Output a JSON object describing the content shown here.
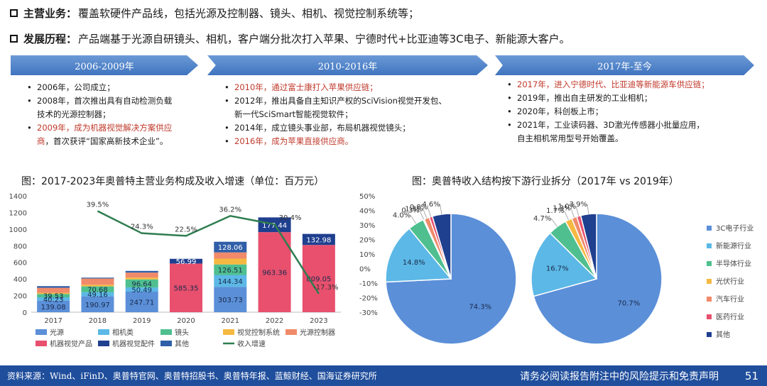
{
  "header": {
    "line1_key": "主营业务：",
    "line1_text": "覆盖软硬件产品线，包括光源及控制器、镜头、相机、视觉控制系统等；",
    "line2_key": "发展历程：",
    "line2_text": "产品端基于光源自研镜头、相机，客户端分批次打入苹果、宁德时代+比亚迪等3C电子、新能源大客户。"
  },
  "timeline": [
    {
      "label": "2006-2009年"
    },
    {
      "label": "2010-2016年"
    },
    {
      "label": "2017年-至今"
    }
  ],
  "col1": {
    "i1": "2006年，公司成立；",
    "i2a": "2008年，首次推出具有自动检测负载",
    "i2b": "技术的光源控制器；",
    "i3a": "2009年，成为机器视觉解决方案供应",
    "i3b_red": "商",
    "i3b_black": "，首次获评“国家高新技术企业”。"
  },
  "col2": {
    "i1": "2010年，通过富士康打入苹果供应链；",
    "i2a": "2012年，推出具备自主知识产权的SciVision视觉开发包、",
    "i2b": "新一代SciSmart智能视觉软件；",
    "i3": "2014年，成立镜头事业部，布局机器视觉镜头；",
    "i4": "2016年，成为苹果直接供应商。"
  },
  "col3": {
    "i1": "2017年，进入宁德时代、比亚迪等新能源车供应链；",
    "i2": "2019年，推出自主研发的工业相机；",
    "i3": "2020年，科创板上市；",
    "i4a": "2021年，工业读码器、3D激光传感器小批量应用，",
    "i4b": "自主相机常用型号开始覆盖。"
  },
  "colors": {
    "光源": "#5b8fd8",
    "相机类": "#5cb8e6",
    "镜头": "#4fbf8f",
    "视觉控制系统": "#f5b942",
    "光源控制器": "#f08a6a",
    "机器视觉产品": "#e8506e",
    "机器视觉配件": "#1f3f8f",
    "其他": "#2f5fa8",
    "收入增速": "#2e7d4f"
  },
  "chart_data": [
    {
      "type": "bar",
      "title": "图：2017-2023年奥普特主营业务构成及收入增速（单位：百万元）",
      "categories": [
        "2017",
        "2018",
        "2019",
        "2020",
        "2021",
        "2022",
        "2023"
      ],
      "series": [
        {
          "name": "光源",
          "values": [
            139.08,
            190.97,
            247.71,
            0,
            303.73,
            0,
            0
          ]
        },
        {
          "name": "相机类",
          "values": [
            40.23,
            49.16,
            50.49,
            0,
            144.34,
            0,
            0
          ]
        },
        {
          "name": "镜头",
          "values": [
            39.53,
            70.68,
            96.64,
            0,
            126.51,
            0,
            0
          ]
        },
        {
          "name": "视觉控制系统",
          "values": [
            15,
            20,
            22,
            0,
            70,
            0,
            0
          ]
        },
        {
          "name": "光源控制器",
          "values": [
            60,
            75,
            60,
            0,
            75,
            0,
            0
          ]
        },
        {
          "name": "机器视觉产品",
          "values": [
            0,
            0,
            0,
            585.35,
            0,
            963.36,
            809.05
          ]
        },
        {
          "name": "机器视觉配件",
          "values": [
            0,
            0,
            0,
            56.99,
            0,
            177.44,
            132.98
          ]
        },
        {
          "name": "其他",
          "values": [
            20,
            10,
            20,
            0,
            128.06,
            0,
            0
          ]
        },
        {
          "name": "收入增速",
          "axis": "right",
          "values": [
            null,
            39.5,
            24.3,
            22.5,
            36.2,
            30.4,
            -17.3
          ]
        }
      ],
      "labels": [
        {
          "cat": "2017",
          "text": "139.08",
          "seg": 0
        },
        {
          "cat": "2017",
          "text": "40.23",
          "seg": 1
        },
        {
          "cat": "2017",
          "text": "39.53",
          "seg": 2
        },
        {
          "cat": "2018",
          "text": "190.97",
          "seg": 0
        },
        {
          "cat": "2018",
          "text": "49.16",
          "seg": 1
        },
        {
          "cat": "2018",
          "text": "70.68",
          "seg": 2
        },
        {
          "cat": "2019",
          "text": "247.71",
          "seg": 0
        },
        {
          "cat": "2019",
          "text": "50.49",
          "seg": 1
        },
        {
          "cat": "2019",
          "text": "96.64",
          "seg": 2
        },
        {
          "cat": "2020",
          "text": "585.35",
          "seg": 5
        },
        {
          "cat": "2020",
          "text": "56.99",
          "seg": 6
        },
        {
          "cat": "2021",
          "text": "303.73",
          "seg": 0
        },
        {
          "cat": "2021",
          "text": "144.34",
          "seg": 1
        },
        {
          "cat": "2021",
          "text": "126.51",
          "seg": 2
        },
        {
          "cat": "2021",
          "text": "128.06",
          "seg": 7
        },
        {
          "cat": "2022",
          "text": "963.36",
          "seg": 5
        },
        {
          "cat": "2022",
          "text": "177.44",
          "seg": 6
        },
        {
          "cat": "2023",
          "text": "809.05",
          "seg": 5
        },
        {
          "cat": "2023",
          "text": "132.98",
          "seg": 6
        }
      ],
      "growth_labels": [
        "",
        "39.5%",
        "24.3%",
        "22.5%",
        "36.2%",
        "30.4%",
        "-17.3%"
      ],
      "ylim": [
        0,
        1400
      ],
      "yticks": [
        "0",
        "200",
        "400",
        "600",
        "800",
        "1000",
        "1200",
        "1400"
      ],
      "y2lim": [
        -30,
        50
      ],
      "y2ticks": [
        "-30%",
        "-20%",
        "-10%",
        "0%",
        "10%",
        "20%",
        "30%",
        "40%",
        "50%"
      ],
      "legend_placement": "bottom",
      "grid": false
    },
    {
      "type": "pie",
      "title": "图：奥普特收入结构按下游行业拆分（2017年 vs 2019年）",
      "categories": [
        "3C电子行业",
        "新能源行业",
        "半导体行业",
        "光伏行业",
        "汽车行业",
        "医药行业",
        "其他"
      ],
      "pies": [
        {
          "name": "2017年",
          "values": [
            74.3,
            14.8,
            4.0,
            0.3,
            1.3,
            0.8,
            4.6
          ],
          "labels": [
            "74.3%",
            "14.8%",
            "4.0%",
            "0.3%",
            "1.3%",
            "0.8%",
            "4.6%"
          ]
        },
        {
          "name": "2019年",
          "values": [
            70.7,
            16.7,
            4.7,
            1.7,
            1.3,
            1.0,
            3.9
          ],
          "labels": [
            "70.7%",
            "16.7%",
            "4.7%",
            "1.7%",
            "1.3%",
            "1.0%",
            "3.9%"
          ]
        }
      ],
      "colors": [
        "#5b8fd8",
        "#5cb8e6",
        "#4fbf8f",
        "#f5b942",
        "#f08a6a",
        "#e8506e",
        "#1f3f8f"
      ],
      "legend_placement": "right"
    }
  ],
  "footer": {
    "source": "资料来源：Wind、iFinD、奥普特官网、奥普特招股书、奥普特年报、蓝鲸财经、国海证券研究所",
    "disclaimer": "请务必阅读报告附注中的风险提示和免责声明",
    "page": "51"
  }
}
